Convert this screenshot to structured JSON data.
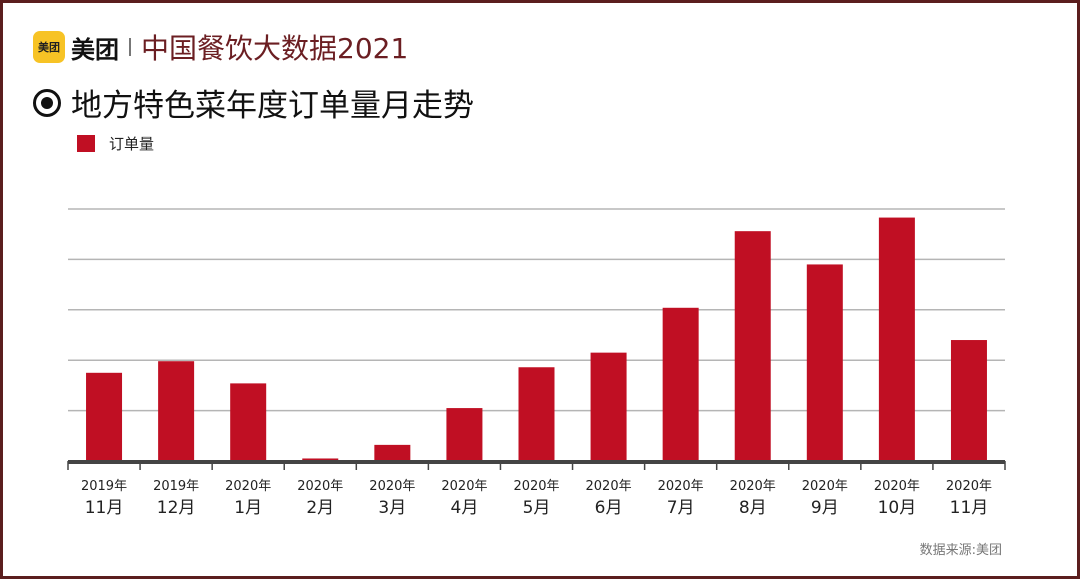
{
  "header": {
    "logo_text": "美团",
    "brand": "美团",
    "title": "中国餐饮大数据2021"
  },
  "chart_data": {
    "type": "bar",
    "title": "地方特色菜年度订单量月走势",
    "legend_position": "top-left",
    "grid": true,
    "ylim": [
      0,
      5
    ],
    "categories": [
      {
        "year": "2019年",
        "month": "11月"
      },
      {
        "year": "2019年",
        "month": "12月"
      },
      {
        "year": "2020年",
        "month": "1月"
      },
      {
        "year": "2020年",
        "month": "2月"
      },
      {
        "year": "2020年",
        "month": "3月"
      },
      {
        "year": "2020年",
        "month": "4月"
      },
      {
        "year": "2020年",
        "month": "5月"
      },
      {
        "year": "2020年",
        "month": "6月"
      },
      {
        "year": "2020年",
        "month": "7月"
      },
      {
        "year": "2020年",
        "month": "8月"
      },
      {
        "year": "2020年",
        "month": "9月"
      },
      {
        "year": "2020年",
        "month": "10月"
      },
      {
        "year": "2020年",
        "month": "11月"
      }
    ],
    "series": [
      {
        "name": "订单量",
        "color": "#c00f23",
        "values": [
          1.75,
          1.98,
          1.54,
          0.05,
          0.32,
          1.05,
          1.86,
          2.15,
          3.04,
          4.56,
          3.9,
          4.83,
          2.4
        ]
      }
    ]
  },
  "source": "数据来源:美团"
}
